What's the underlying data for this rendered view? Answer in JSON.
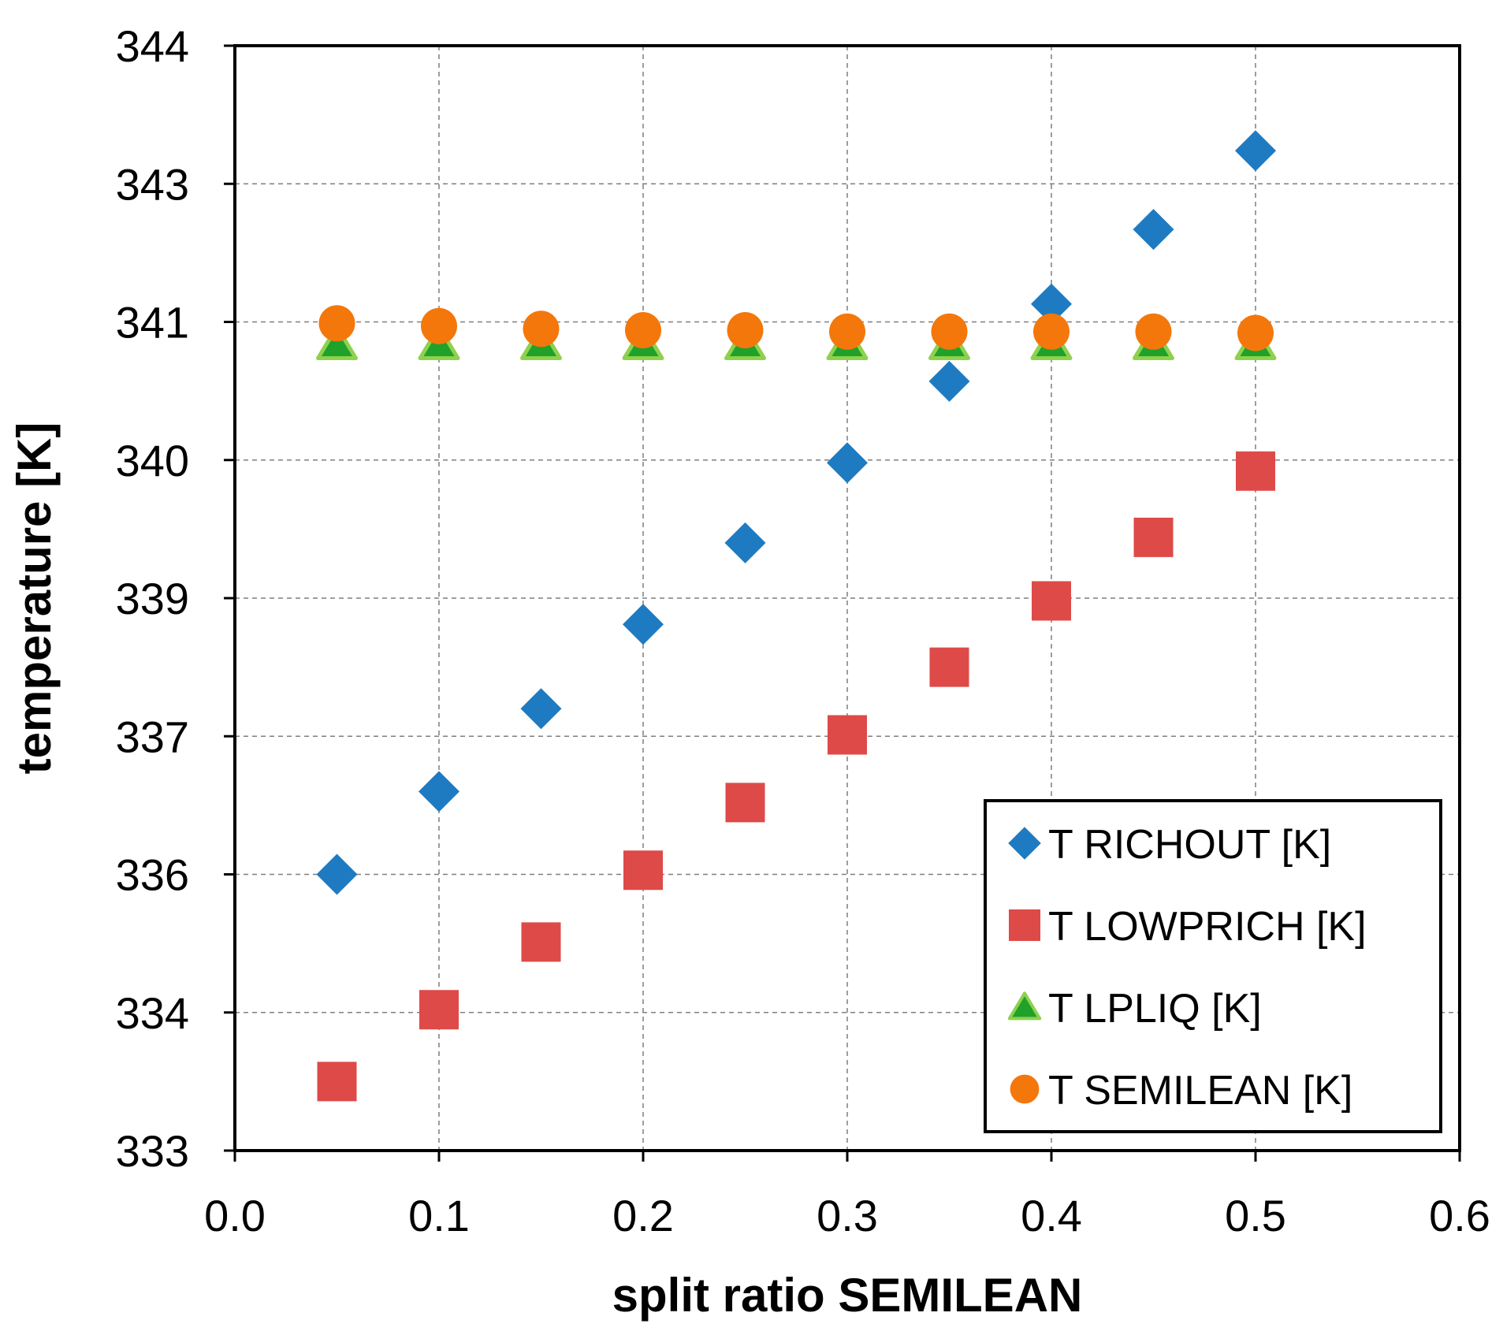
{
  "chart_data": {
    "type": "scatter",
    "title": "",
    "xlabel": "split ratio SEMILEAN",
    "ylabel": "temperature [K]",
    "xlim": [
      0.0,
      0.6
    ],
    "x_ticks": [
      0.0,
      0.1,
      0.2,
      0.3,
      0.4,
      0.5,
      0.6
    ],
    "x_tick_labels": [
      "0.0",
      "0.1",
      "0.2",
      "0.3",
      "0.4",
      "0.5",
      "0.6"
    ],
    "y_tick_labels": [
      "333",
      "334",
      "336",
      "337",
      "339",
      "340",
      "341",
      "343",
      "344"
    ],
    "y_axis_note": "tick labels are evenly spaced; values are expressed in axis tick-interval units (0 = bottom tick '333', 8 = top tick '344')",
    "ylim": [
      0,
      8
    ],
    "grid": true,
    "legend_position": "bottom-right",
    "x": [
      0.05,
      0.1,
      0.15,
      0.2,
      0.25,
      0.3,
      0.35,
      0.4,
      0.45,
      0.5
    ],
    "series": [
      {
        "name": "T RICHOUT [K]",
        "marker": "diamond",
        "color": "#1f7bc1",
        "values": [
          2.0,
          2.6,
          3.2,
          3.81,
          4.4,
          4.98,
          5.57,
          6.13,
          6.67,
          7.24
        ]
      },
      {
        "name": "T LOWPRICH [K]",
        "marker": "square",
        "color": "#de4a48",
        "values": [
          0.5,
          1.02,
          1.51,
          2.03,
          2.52,
          3.01,
          3.5,
          3.98,
          4.44,
          4.92
        ]
      },
      {
        "name": "T LPLIQ [K]",
        "marker": "triangle",
        "color": "#1fa12a",
        "edge_color": "#8fd14f",
        "values": [
          5.84,
          5.84,
          5.84,
          5.84,
          5.84,
          5.84,
          5.84,
          5.84,
          5.84,
          5.84
        ]
      },
      {
        "name": "T SEMILEAN [K]",
        "marker": "circle",
        "color": "#f4770b",
        "values": [
          5.99,
          5.97,
          5.95,
          5.94,
          5.94,
          5.93,
          5.93,
          5.93,
          5.93,
          5.92
        ]
      }
    ]
  }
}
